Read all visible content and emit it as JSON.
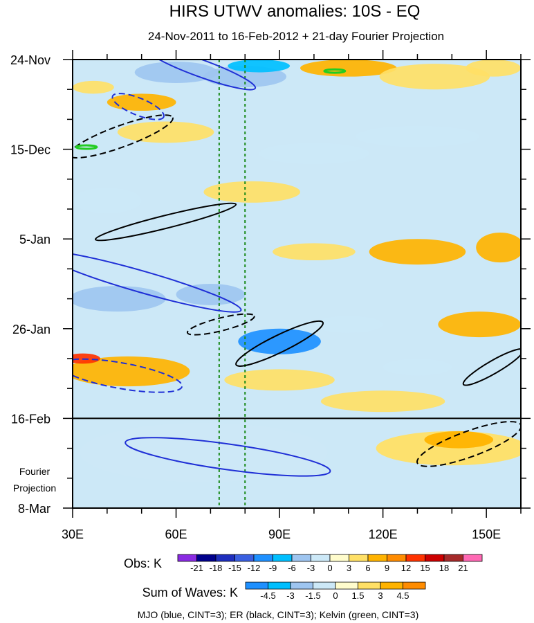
{
  "chart_data": {
    "type": "heatmap",
    "title": "HIRS UTWV anomalies: 10S - EQ",
    "subtitle": "24-Nov-2011 to 16-Feb-2012 + 21-day Fourier Projection",
    "x_ticks": [
      "30E",
      "60E",
      "90E",
      "120E",
      "150E"
    ],
    "x_tick_values": [
      30,
      60,
      90,
      120,
      150
    ],
    "xlim": [
      30,
      160
    ],
    "y_ticks": [
      "24-Nov",
      "15-Dec",
      "5-Jan",
      "26-Jan",
      "16-Feb",
      "8-Mar"
    ],
    "y_tick_days": [
      0,
      21,
      42,
      63,
      84,
      105
    ],
    "ylim_days": [
      0,
      105
    ],
    "projection_start_label": "16-Feb",
    "projection_label_line1": "Fourier",
    "projection_label_line2": "Projection",
    "reference_longitudes": [
      72.5,
      80
    ],
    "obs_legend": {
      "title": "Obs: K",
      "levels": [
        "-21",
        "-18",
        "-15",
        "-12",
        "-9",
        "-6",
        "-3",
        "0",
        "3",
        "6",
        "9",
        "12",
        "15",
        "18",
        "21"
      ],
      "colors": [
        "#8a2be2",
        "#00008b",
        "#1e2ebd",
        "#3a5fe0",
        "#1e90ff",
        "#00bfff",
        "#9ec5f0",
        "#cce8f7",
        "#fffccc",
        "#ffe066",
        "#ffb300",
        "#ff8c00",
        "#ff3300",
        "#cc0000",
        "#a52a2a",
        "#ff69b4"
      ]
    },
    "waves_legend": {
      "title": "Sum of Waves: K",
      "levels": [
        "-4.5",
        "-3",
        "-1.5",
        "0",
        "1.5",
        "3",
        "4.5"
      ],
      "colors": [
        "#1e90ff",
        "#00bfff",
        "#9ec5f0",
        "#cce8f7",
        "#fffccc",
        "#ffe066",
        "#ffb300",
        "#ff8c00"
      ]
    },
    "footnote": "MJO (blue, CINT=3); ER (black, CINT=3); Kelvin (green, CINT=3)",
    "patches": [
      {
        "lon": 60,
        "day": 3,
        "rlon": 12,
        "rday": 2.5,
        "level": -6
      },
      {
        "lon": 80,
        "day": 4,
        "rlon": 12,
        "rday": 2.5,
        "level": -6
      },
      {
        "lon": 84,
        "day": 1.5,
        "rlon": 9,
        "rday": 1.5,
        "level": -9
      },
      {
        "lon": 110,
        "day": 2,
        "rlon": 14,
        "rday": 2,
        "level": 6
      },
      {
        "lon": 135,
        "day": 4,
        "rlon": 16,
        "rday": 3,
        "level": 3
      },
      {
        "lon": 152,
        "day": 2,
        "rlon": 8,
        "rday": 2,
        "level": 3
      },
      {
        "lon": 50,
        "day": 10,
        "rlon": 10,
        "rday": 2,
        "level": 6
      },
      {
        "lon": 36,
        "day": 6.5,
        "rlon": 6,
        "rday": 1.5,
        "level": 3
      },
      {
        "lon": 57,
        "day": 17,
        "rlon": 14,
        "rday": 2.5,
        "level": 3
      },
      {
        "lon": 100,
        "day": 22,
        "rlon": 16,
        "rday": 2.5,
        "level": -3
      },
      {
        "lon": 130,
        "day": 18,
        "rlon": 18,
        "rday": 2.5,
        "level": -3
      },
      {
        "lon": 82,
        "day": 31,
        "rlon": 14,
        "rday": 2.5,
        "level": 3
      },
      {
        "lon": 40,
        "day": 33,
        "rlon": 10,
        "rday": 3,
        "level": -3
      },
      {
        "lon": 130,
        "day": 45,
        "rlon": 14,
        "rday": 3,
        "level": 6
      },
      {
        "lon": 154,
        "day": 44,
        "rlon": 7,
        "rday": 3.5,
        "level": 6
      },
      {
        "lon": 100,
        "day": 45,
        "rlon": 12,
        "rday": 2,
        "level": 3
      },
      {
        "lon": 43,
        "day": 56,
        "rlon": 14,
        "rday": 3,
        "level": -6
      },
      {
        "lon": 70,
        "day": 55,
        "rlon": 10,
        "rday": 2.5,
        "level": -6
      },
      {
        "lon": 90,
        "day": 66,
        "rlon": 12,
        "rday": 3,
        "level": -12
      },
      {
        "lon": 110,
        "day": 62,
        "rlon": 10,
        "rday": 2,
        "level": -3
      },
      {
        "lon": 148,
        "day": 62,
        "rlon": 12,
        "rday": 3,
        "level": 6
      },
      {
        "lon": 46,
        "day": 73,
        "rlon": 18,
        "rday": 3.5,
        "level": 6
      },
      {
        "lon": 33,
        "day": 70,
        "rlon": 5,
        "rday": 1.2,
        "level": 12
      },
      {
        "lon": 90,
        "day": 75,
        "rlon": 16,
        "rday": 2.5,
        "level": 3
      },
      {
        "lon": 120,
        "day": 80,
        "rlon": 18,
        "rday": 2.5,
        "level": 3
      },
      {
        "lon": 130,
        "day": 72,
        "rlon": 10,
        "rday": 2,
        "level": -3
      }
    ],
    "projection_patches": [
      {
        "lon": 68,
        "day": 92,
        "rlon": 36,
        "rday": 7,
        "level": -1.5
      },
      {
        "lon": 140,
        "day": 91,
        "rlon": 22,
        "rday": 4,
        "level": 1.5
      },
      {
        "lon": 142,
        "day": 89,
        "rlon": 10,
        "rday": 2,
        "level": 3
      }
    ],
    "contours": [
      {
        "wave": "MJO",
        "dashed": false,
        "lon": 67,
        "day": 2,
        "rlon": 17,
        "rday": 2,
        "angle": 20
      },
      {
        "wave": "MJO",
        "dashed": true,
        "lon": 49,
        "day": 11,
        "rlon": 8,
        "rday": 2,
        "angle": 22
      },
      {
        "wave": "ER",
        "dashed": true,
        "lon": 44,
        "day": 18,
        "rlon": 16,
        "rday": 2.5,
        "angle": -20
      },
      {
        "wave": "Kelvin",
        "dashed": false,
        "lon": 34,
        "day": 20.5,
        "rlon": 3,
        "rday": 0.4,
        "angle": 0
      },
      {
        "wave": "Kelvin",
        "dashed": false,
        "lon": 106,
        "day": 2.7,
        "rlon": 3,
        "rday": 0.4,
        "angle": 0
      },
      {
        "wave": "ER",
        "dashed": false,
        "lon": 57,
        "day": 38,
        "rlon": 21,
        "rday": 1.5,
        "angle": -14
      },
      {
        "wave": "MJO",
        "dashed": false,
        "lon": 50,
        "day": 52,
        "rlon": 30,
        "rday": 2.5,
        "angle": 16
      },
      {
        "wave": "ER",
        "dashed": true,
        "lon": 73,
        "day": 62,
        "rlon": 10,
        "rday": 1.5,
        "angle": -14
      },
      {
        "wave": "ER",
        "dashed": false,
        "lon": 90,
        "day": 66.5,
        "rlon": 14,
        "rday": 2,
        "angle": -26
      },
      {
        "wave": "MJO",
        "dashed": true,
        "lon": 44,
        "day": 74,
        "rlon": 18,
        "rday": 3,
        "angle": 10
      },
      {
        "wave": "ER",
        "dashed": false,
        "lon": 152,
        "day": 72,
        "rlon": 10,
        "rday": 1.5,
        "angle": -30
      },
      {
        "wave": "MJO",
        "dashed": false,
        "lon": 75,
        "day": 93,
        "rlon": 30,
        "rday": 3,
        "angle": 8
      },
      {
        "wave": "ER",
        "dashed": true,
        "lon": 145,
        "day": 90,
        "rlon": 16,
        "rday": 3,
        "angle": -20
      }
    ]
  }
}
